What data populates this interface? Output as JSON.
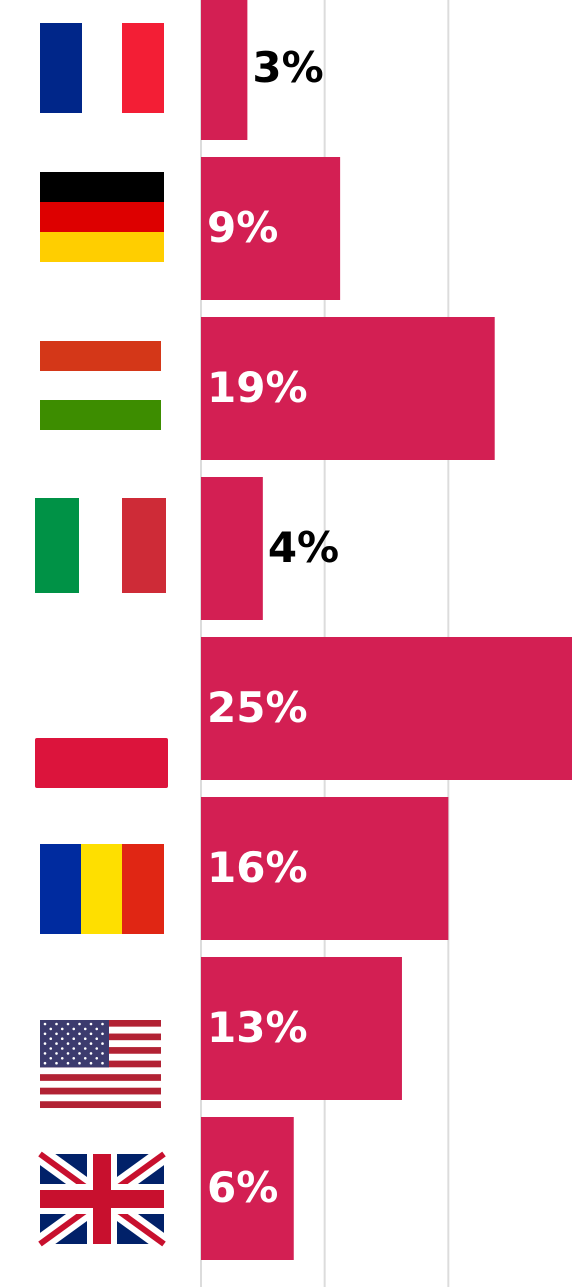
{
  "chart_data": {
    "type": "hbar",
    "categories": [
      null,
      null,
      null,
      null,
      null,
      null,
      null,
      null
    ],
    "values": [
      3,
      9,
      19,
      4,
      25,
      16,
      13,
      6
    ],
    "value_labels": [
      "3%",
      "9%",
      "19%",
      "4%",
      "25%",
      "16%",
      "13%",
      "6%"
    ],
    "color": "#d31f53",
    "xlim": [
      0,
      24
    ],
    "gridlines": [
      0,
      8,
      16
    ],
    "grid": true
  }
}
